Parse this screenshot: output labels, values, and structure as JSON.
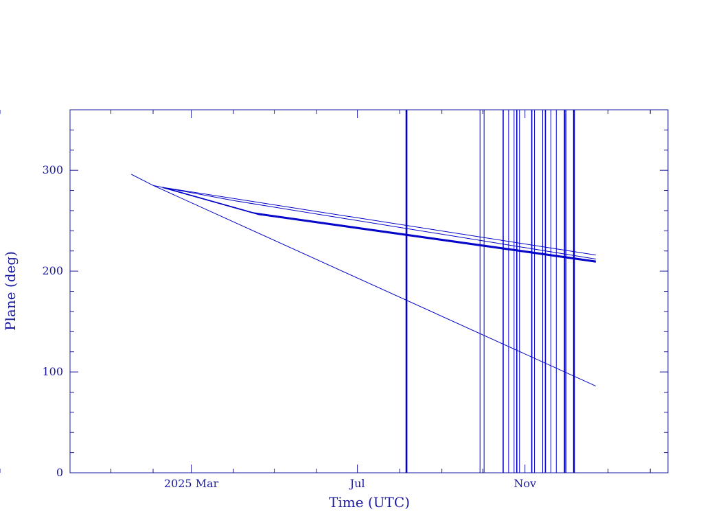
{
  "chart_data": {
    "type": "line",
    "title": "",
    "xlabel": "Time (UTC)",
    "ylabel": "Plane (deg)",
    "xlim": [
      "2024-12-02",
      "2026-02-14"
    ],
    "ylim": [
      0,
      360
    ],
    "x_tick_labels": [
      {
        "date": "2025-03-01",
        "label": "2025 Mar"
      },
      {
        "date": "2025-07-01",
        "label": "Jul"
      },
      {
        "date": "2025-11-01",
        "label": "Nov"
      }
    ],
    "y_ticks": [
      0,
      100,
      200,
      300
    ],
    "grid": false,
    "series": [
      {
        "x": [
          "2025-01-16",
          "2025-02-01",
          "2025-12-23"
        ],
        "y": [
          296,
          285,
          86
        ]
      },
      {
        "x": [
          "2025-02-01",
          "2025-02-08",
          "2025-12-23"
        ],
        "y": [
          285,
          283,
          216
        ]
      },
      {
        "x": [
          "2025-02-08",
          "2025-04-01",
          "2025-12-23"
        ],
        "y": [
          283,
          270,
          212
        ]
      },
      {
        "x": [
          "2025-02-08",
          "2025-04-20",
          "2025-12-23"
        ],
        "y": [
          283,
          256,
          209
        ]
      },
      {
        "x": [
          "2025-02-08",
          "2025-04-15",
          "2025-12-23"
        ],
        "y": [
          283,
          258,
          210
        ]
      }
    ],
    "vertical_lines": [
      {
        "date": "2025-08-06",
        "weight": "heavy"
      },
      {
        "date": "2025-09-29",
        "weight": "light"
      },
      {
        "date": "2025-10-02",
        "weight": "light"
      },
      {
        "date": "2025-10-16",
        "weight": "normal"
      },
      {
        "date": "2025-10-20",
        "weight": "light"
      },
      {
        "date": "2025-10-24",
        "weight": "light"
      },
      {
        "date": "2025-10-26",
        "weight": "normal"
      },
      {
        "date": "2025-10-28",
        "weight": "light"
      },
      {
        "date": "2025-11-06",
        "weight": "normal"
      },
      {
        "date": "2025-11-08",
        "weight": "light"
      },
      {
        "date": "2025-11-14",
        "weight": "light"
      },
      {
        "date": "2025-11-16",
        "weight": "normal"
      },
      {
        "date": "2025-11-20",
        "weight": "light"
      },
      {
        "date": "2025-11-24",
        "weight": "light"
      },
      {
        "date": "2025-11-30",
        "weight": "normal"
      },
      {
        "date": "2025-12-01",
        "weight": "normal"
      },
      {
        "date": "2025-12-07",
        "weight": "heavy"
      }
    ],
    "colors": {
      "axis": "#1a1aa0",
      "line": "#0000c8"
    }
  }
}
